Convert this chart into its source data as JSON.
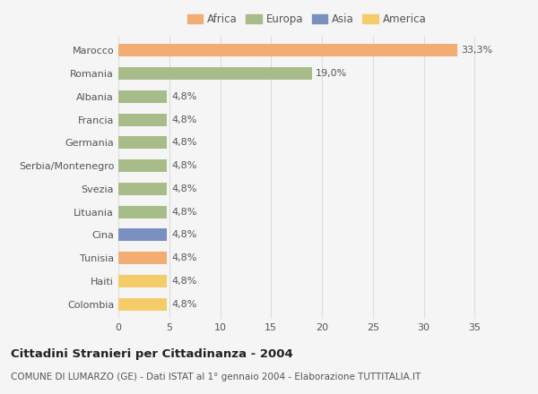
{
  "countries": [
    "Marocco",
    "Romania",
    "Albania",
    "Francia",
    "Germania",
    "Serbia/Montenegro",
    "Svezia",
    "Lituania",
    "Cina",
    "Tunisia",
    "Haiti",
    "Colombia"
  ],
  "values": [
    33.3,
    19.0,
    4.8,
    4.8,
    4.8,
    4.8,
    4.8,
    4.8,
    4.8,
    4.8,
    4.8,
    4.8
  ],
  "labels": [
    "33,3%",
    "19,0%",
    "4,8%",
    "4,8%",
    "4,8%",
    "4,8%",
    "4,8%",
    "4,8%",
    "4,8%",
    "4,8%",
    "4,8%",
    "4,8%"
  ],
  "colors": [
    "#F2AE72",
    "#A8BC8A",
    "#A8BC8A",
    "#A8BC8A",
    "#A8BC8A",
    "#A8BC8A",
    "#A8BC8A",
    "#A8BC8A",
    "#7B8FC0",
    "#F2AE72",
    "#F5CC6A",
    "#F5CC6A"
  ],
  "legend": [
    {
      "label": "Africa",
      "color": "#F2AE72"
    },
    {
      "label": "Europa",
      "color": "#A8BC8A"
    },
    {
      "label": "Asia",
      "color": "#7B8FC0"
    },
    {
      "label": "America",
      "color": "#F5CC6A"
    }
  ],
  "xlim": [
    0,
    37
  ],
  "xticks": [
    0,
    5,
    10,
    15,
    20,
    25,
    30,
    35
  ],
  "title": "Cittadini Stranieri per Cittadinanza - 2004",
  "subtitle": "COMUNE DI LUMARZO (GE) - Dati ISTAT al 1° gennaio 2004 - Elaborazione TUTTITALIA.IT",
  "bg_color": "#f5f5f5",
  "bar_height": 0.55,
  "grid_color": "#dddddd",
  "label_fontsize": 8,
  "tick_fontsize": 8,
  "legend_fontsize": 8.5,
  "title_fontsize": 9.5,
  "subtitle_fontsize": 7.5
}
